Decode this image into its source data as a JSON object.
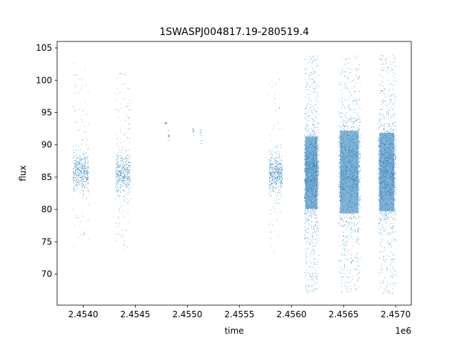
{
  "chart_data": {
    "type": "scatter",
    "title": "1SWASPJ004817.19-280519.4",
    "xlabel": "time",
    "ylabel": "flux",
    "x_offset_label": "1e6",
    "xlim": [
      2.45375,
      2.45715
    ],
    "ylim": [
      65.2,
      106.0
    ],
    "x_ticks": [
      2.454,
      2.4545,
      2.455,
      2.4555,
      2.456,
      2.4565,
      2.457
    ],
    "x_tick_labels": [
      "2.4540",
      "2.4545",
      "2.4550",
      "2.4555",
      "2.4560",
      "2.4565",
      "2.4570"
    ],
    "y_ticks": [
      70,
      75,
      80,
      85,
      90,
      95,
      100,
      105
    ],
    "y_tick_labels": [
      "70",
      "75",
      "80",
      "85",
      "90",
      "95",
      "100",
      "105"
    ],
    "grid": false,
    "series_color": "#1f77b4",
    "segments": [
      {
        "x_start": 2.4539,
        "x_end": 2.45405,
        "center": 85.9,
        "core_sd": 1.4,
        "low": 73.5,
        "high": 103.5,
        "wide_share": 0.16,
        "dense": false
      },
      {
        "x_start": 2.45431,
        "x_end": 2.45445,
        "center": 85.6,
        "core_sd": 1.6,
        "low": 73.8,
        "high": 103.0,
        "wide_share": 0.18,
        "dense": false
      },
      {
        "x_start": 2.45478,
        "x_end": 2.4548,
        "center": 93.4,
        "core_sd": 0.1,
        "low": 93.3,
        "high": 93.5,
        "wide_share": 0.0,
        "dense": false
      },
      {
        "x_start": 2.45481,
        "x_end": 2.45483,
        "center": 91.5,
        "core_sd": 0.6,
        "low": 90.5,
        "high": 92.5,
        "wide_share": 0.0,
        "dense": false
      },
      {
        "x_start": 2.45505,
        "x_end": 2.45506,
        "center": 92.0,
        "core_sd": 0.4,
        "low": 91.5,
        "high": 92.6,
        "wide_share": 0.0,
        "dense": false
      },
      {
        "x_start": 2.45512,
        "x_end": 2.45514,
        "center": 91.4,
        "core_sd": 0.7,
        "low": 90.3,
        "high": 92.3,
        "wide_share": 0.0,
        "dense": false
      },
      {
        "x_start": 2.45578,
        "x_end": 2.45591,
        "center": 85.6,
        "core_sd": 1.5,
        "low": 73.5,
        "high": 100.5,
        "wide_share": 0.14,
        "dense": false
      },
      {
        "x_start": 2.45612,
        "x_end": 2.45626,
        "center": 85.7,
        "core_sd": 3.5,
        "low": 67.0,
        "high": 103.8,
        "wide_share": 0.35,
        "dense": true
      },
      {
        "x_start": 2.45645,
        "x_end": 2.45666,
        "center": 85.8,
        "core_sd": 4.0,
        "low": 67.2,
        "high": 103.8,
        "wide_share": 0.35,
        "dense": true
      },
      {
        "x_start": 2.45683,
        "x_end": 2.457,
        "center": 85.8,
        "core_sd": 3.8,
        "low": 66.9,
        "high": 104.0,
        "wide_share": 0.35,
        "dense": true
      }
    ]
  }
}
